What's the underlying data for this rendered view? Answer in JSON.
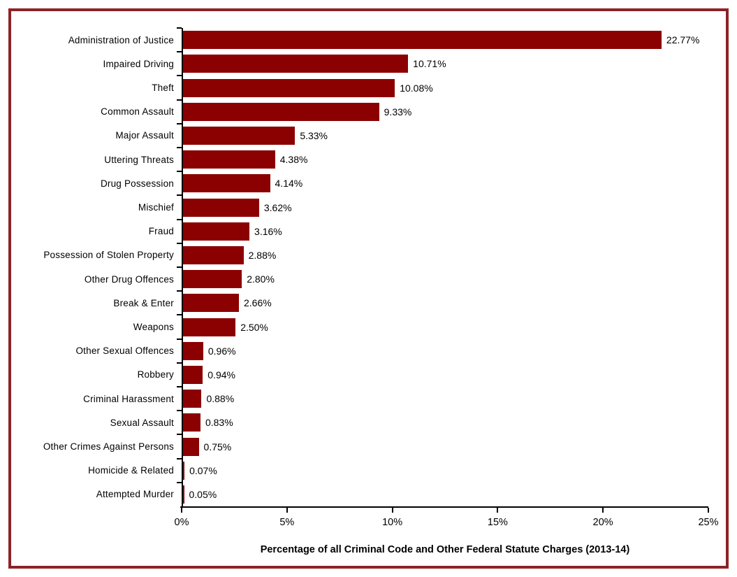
{
  "chart_data": {
    "type": "bar",
    "orientation": "horizontal",
    "title": "",
    "xlabel": "Percentage of all Criminal Code and Other Federal Statute Charges (2013-14)",
    "ylabel": "",
    "categories": [
      "Administration of Justice",
      "Impaired Driving",
      "Theft",
      "Common Assault",
      "Major Assault",
      "Uttering Threats",
      "Drug Possession",
      "Mischief",
      "Fraud",
      "Possession of Stolen Property",
      "Other Drug Offences",
      "Break & Enter",
      "Weapons",
      "Other Sexual Offences",
      "Robbery",
      "Criminal Harassment",
      "Sexual Assault",
      "Other Crimes Against Persons",
      "Homicide & Related",
      "Attempted Murder"
    ],
    "values": [
      22.77,
      10.71,
      10.08,
      9.33,
      5.33,
      4.38,
      4.14,
      3.62,
      3.16,
      2.88,
      2.8,
      2.66,
      2.5,
      0.96,
      0.94,
      0.88,
      0.83,
      0.75,
      0.07,
      0.05
    ],
    "value_labels": [
      "22.77%",
      "10.71%",
      "10.08%",
      "9.33%",
      "5.33%",
      "4.38%",
      "4.14%",
      "3.62%",
      "3.16%",
      "2.88%",
      "2.80%",
      "2.66%",
      "2.50%",
      "0.96%",
      "0.94%",
      "0.88%",
      "0.83%",
      "0.75%",
      "0.07%",
      "0.05%"
    ],
    "x_ticks": [
      "0%",
      "5%",
      "10%",
      "15%",
      "20%",
      "25%"
    ],
    "xlim": [
      0,
      25
    ],
    "grid": false,
    "legend": false,
    "bar_color": "#8B0000",
    "axis_color": "#000000",
    "frame_border_color": "#8C2328",
    "background_color": "#FFFFFF"
  }
}
